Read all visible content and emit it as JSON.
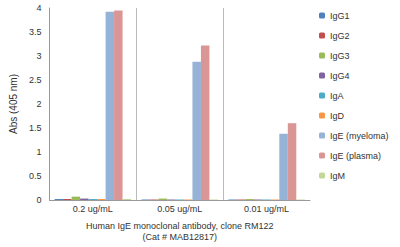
{
  "chart_data": {
    "type": "bar",
    "x_label": "Human IgE monoclonal antibody, clone RM122\n(Cat # MAB12817)",
    "y_label": "Abs (405 nm)",
    "categories": [
      "0.2 ug/mL",
      "0.05 ug/mL",
      "0.01 ug/mL"
    ],
    "series": [
      {
        "name": "IgG1",
        "color": "#4F81BD",
        "values": [
          0.02,
          0.01,
          0.01
        ]
      },
      {
        "name": "IgG2",
        "color": "#C0504D",
        "values": [
          0.02,
          0.01,
          0.01
        ]
      },
      {
        "name": "IgG3",
        "color": "#9BBB59",
        "values": [
          0.07,
          0.03,
          0.02
        ]
      },
      {
        "name": "IgG4",
        "color": "#8064A2",
        "values": [
          0.03,
          0.01,
          0.01
        ]
      },
      {
        "name": "IgA",
        "color": "#4BACC6",
        "values": [
          0.02,
          0.01,
          0.01
        ]
      },
      {
        "name": "IgD",
        "color": "#F79646",
        "values": [
          0.02,
          0.01,
          0.01
        ]
      },
      {
        "name": "IgE (myeloma)",
        "color": "#95B3D7",
        "values": [
          3.92,
          2.88,
          1.38
        ]
      },
      {
        "name": "IgE (plasma)",
        "color": "#DA9694",
        "values": [
          3.95,
          3.22,
          1.6
        ]
      },
      {
        "name": "IgM",
        "color": "#C4D79B",
        "values": [
          0.02,
          0.01,
          0.01
        ]
      }
    ],
    "ylim": [
      0,
      4
    ],
    "yticks": [
      0,
      0.5,
      1,
      1.5,
      2,
      2.5,
      3,
      3.5,
      4
    ],
    "grid": false,
    "legend": "right"
  }
}
